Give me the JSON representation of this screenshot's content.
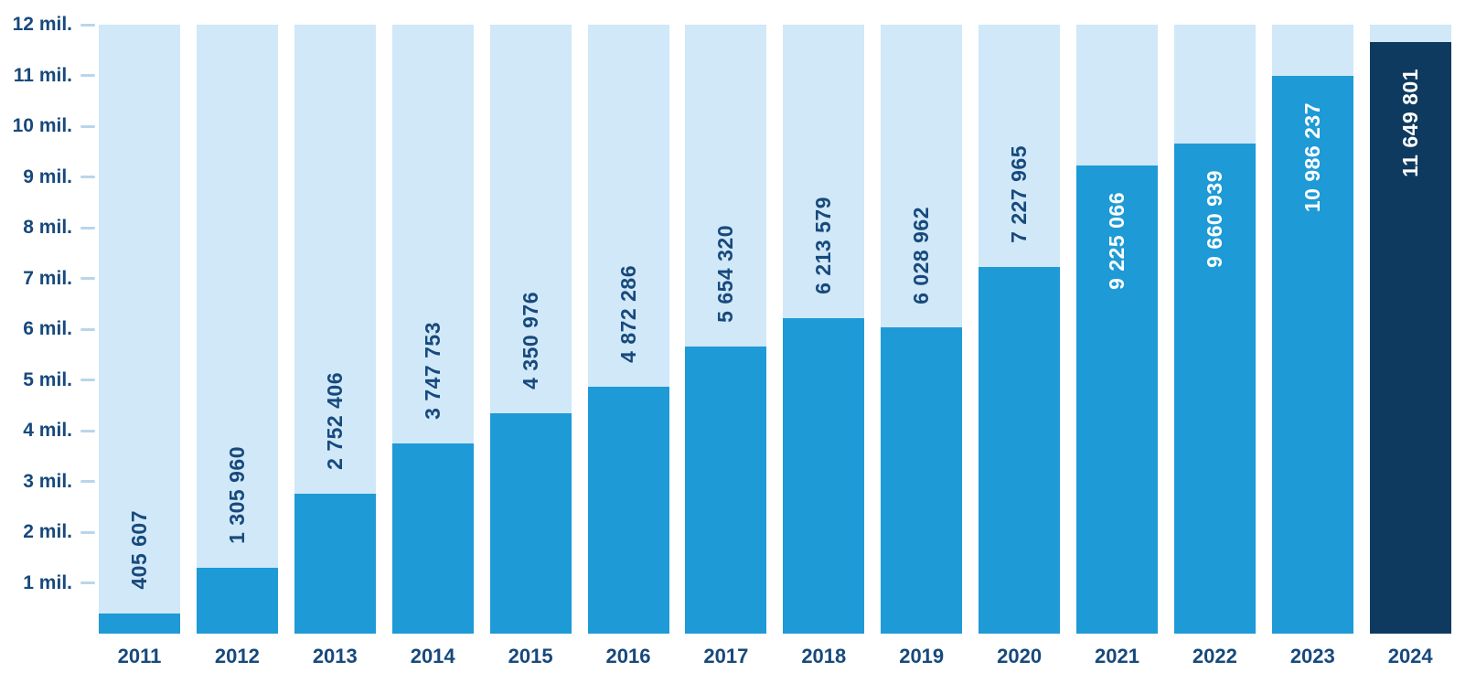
{
  "chart_data": {
    "type": "bar",
    "title": "",
    "xlabel": "",
    "ylabel": "",
    "categories": [
      "2011",
      "2012",
      "2013",
      "2014",
      "2015",
      "2016",
      "2017",
      "2018",
      "2019",
      "2020",
      "2021",
      "2022",
      "2023",
      "2024"
    ],
    "values": [
      405607,
      1305960,
      2752406,
      3747753,
      4350976,
      4872286,
      5654320,
      6213579,
      6028962,
      7227965,
      9225066,
      9660939,
      10986237,
      11649801
    ],
    "value_labels": [
      "405 607",
      "1 305 960",
      "2 752 406",
      "3 747 753",
      "4 350 976",
      "4 872 286",
      "5 654 320",
      "6 213 579",
      "6 028 962",
      "7 227 965",
      "9 225 066",
      "9 660 939",
      "10 986 237",
      "11 649 801"
    ],
    "ylim": [
      0,
      12000000
    ],
    "yticks": [
      {
        "value": 1000000,
        "label": "1 mil."
      },
      {
        "value": 2000000,
        "label": "2 mil."
      },
      {
        "value": 3000000,
        "label": "3 mil."
      },
      {
        "value": 4000000,
        "label": "4 mil."
      },
      {
        "value": 5000000,
        "label": "5 mil."
      },
      {
        "value": 6000000,
        "label": "6 mil."
      },
      {
        "value": 7000000,
        "label": "7 mil."
      },
      {
        "value": 8000000,
        "label": "8 mil."
      },
      {
        "value": 9000000,
        "label": "9 mil."
      },
      {
        "value": 10000000,
        "label": "10 mil."
      },
      {
        "value": 11000000,
        "label": "11 mil."
      },
      {
        "value": 12000000,
        "label": "12 mil."
      }
    ],
    "grid": false,
    "legend_position": "none",
    "highlight_index": 13,
    "label_inside_from_index": 10,
    "colors": {
      "background": "#ffffff",
      "track": "#d0e8f8",
      "bar": "#1e9ad6",
      "bar_highlight": "#0e3a5f",
      "value_label_dark": "#17497c",
      "value_label_light": "#ffffff",
      "axis_text": "#17497c",
      "tick_dash": "#b7d6ec"
    }
  }
}
